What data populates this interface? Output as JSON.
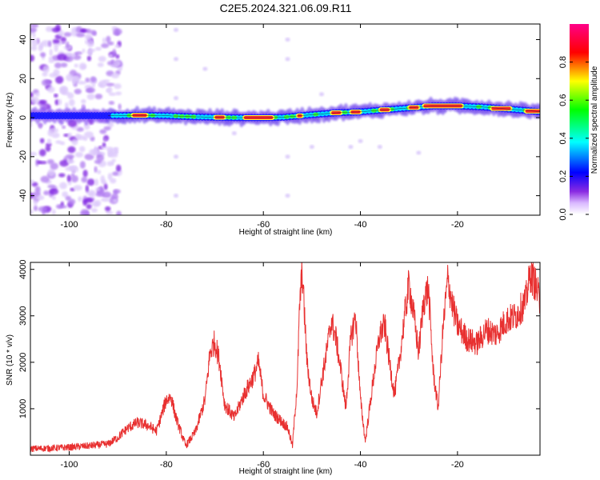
{
  "title": "C2E5.2024.321.06.09.R11",
  "chart_data": [
    {
      "type": "heatmap",
      "xlabel": "Height of straight line (km)",
      "ylabel": "Frequency (Hz)",
      "xlim": [
        -108,
        -3
      ],
      "ylim": [
        -50,
        48
      ],
      "x_ticks": [
        -100,
        -80,
        -60,
        -40,
        -20
      ],
      "x_tick_labels": [
        "-100",
        "-80",
        "-60",
        "-40",
        "-20"
      ],
      "y_ticks": [
        -40,
        -20,
        0,
        20,
        40
      ],
      "y_tick_labels": [
        "-40",
        "-20",
        "0",
        "20",
        "40"
      ],
      "colorbar": {
        "label": "Normalized spectral amplitude",
        "range": [
          0,
          1
        ],
        "ticks": [
          0.0,
          0.2,
          0.4,
          0.6,
          0.8
        ],
        "tick_labels": [
          "0.0",
          "0.2",
          "0.4",
          "0.6",
          "0.8"
        ],
        "colors": [
          "#ffffff",
          "#8a2be2",
          "#0000ff",
          "#00ffff",
          "#00ff00",
          "#ffff00",
          "#ff0000",
          "#ff00aa"
        ]
      },
      "ridge": {
        "x": [
          -92,
          -85,
          -80,
          -75,
          -70,
          -65,
          -60,
          -56,
          -50,
          -45,
          -40,
          -35,
          -30,
          -25,
          -20,
          -15,
          -10,
          -5,
          -3
        ],
        "y": [
          1.0,
          1.2,
          1.0,
          0.5,
          0.2,
          0.0,
          0.0,
          0.2,
          1.5,
          2.5,
          3.0,
          4.0,
          5.0,
          6.0,
          6.0,
          5.5,
          4.5,
          3.5,
          3.0
        ]
      }
    },
    {
      "type": "line",
      "xlabel": "Height of straight line (km)",
      "ylabel": "SNR (10 * v/v)",
      "xlim": [
        -108,
        -3
      ],
      "ylim": [
        0,
        4150
      ],
      "x_ticks": [
        -100,
        -80,
        -60,
        -40,
        -20
      ],
      "x_tick_labels": [
        "-100",
        "-80",
        "-60",
        "-40",
        "-20"
      ],
      "y_ticks": [
        1000,
        2000,
        3000,
        4000
      ],
      "y_tick_labels": [
        "1000",
        "2000",
        "3000",
        "4000"
      ],
      "series": [
        {
          "color": "#e83030",
          "x": [
            -108,
            -104,
            -100,
            -96,
            -92,
            -90,
            -88,
            -86,
            -84,
            -82,
            -80,
            -79,
            -78,
            -76,
            -74,
            -72,
            -71,
            -70,
            -69,
            -68,
            -66,
            -64,
            -62,
            -61,
            -60,
            -58,
            -56,
            -55,
            -54,
            -53,
            -52.5,
            -52,
            -51,
            -50,
            -49,
            -48,
            -47,
            -46,
            -45,
            -44,
            -43,
            -42,
            -41,
            -40,
            -39,
            -38,
            -37,
            -36,
            -35,
            -34,
            -33,
            -32,
            -31,
            -30,
            -29,
            -28,
            -27,
            -26,
            -25,
            -24,
            -23,
            -22,
            -21,
            -20,
            -18,
            -16,
            -14,
            -12,
            -10,
            -8,
            -6,
            -5,
            -4,
            -3
          ],
          "y": [
            140,
            150,
            170,
            200,
            240,
            380,
            580,
            700,
            650,
            520,
            1200,
            1250,
            800,
            200,
            500,
            1200,
            2200,
            2450,
            2000,
            1100,
            800,
            1300,
            1700,
            2000,
            1300,
            900,
            700,
            600,
            200,
            1600,
            3300,
            3950,
            2000,
            1200,
            900,
            1600,
            2200,
            2900,
            2500,
            1800,
            1000,
            2500,
            3000,
            1200,
            300,
            1100,
            1900,
            2600,
            2800,
            2000,
            1300,
            2000,
            2900,
            3700,
            3000,
            2200,
            3300,
            3600,
            1800,
            1000,
            2700,
            3800,
            3200,
            2800,
            2500,
            2400,
            2700,
            2600,
            2900,
            3000,
            3300,
            3900,
            3700,
            3300
          ]
        }
      ]
    }
  ]
}
